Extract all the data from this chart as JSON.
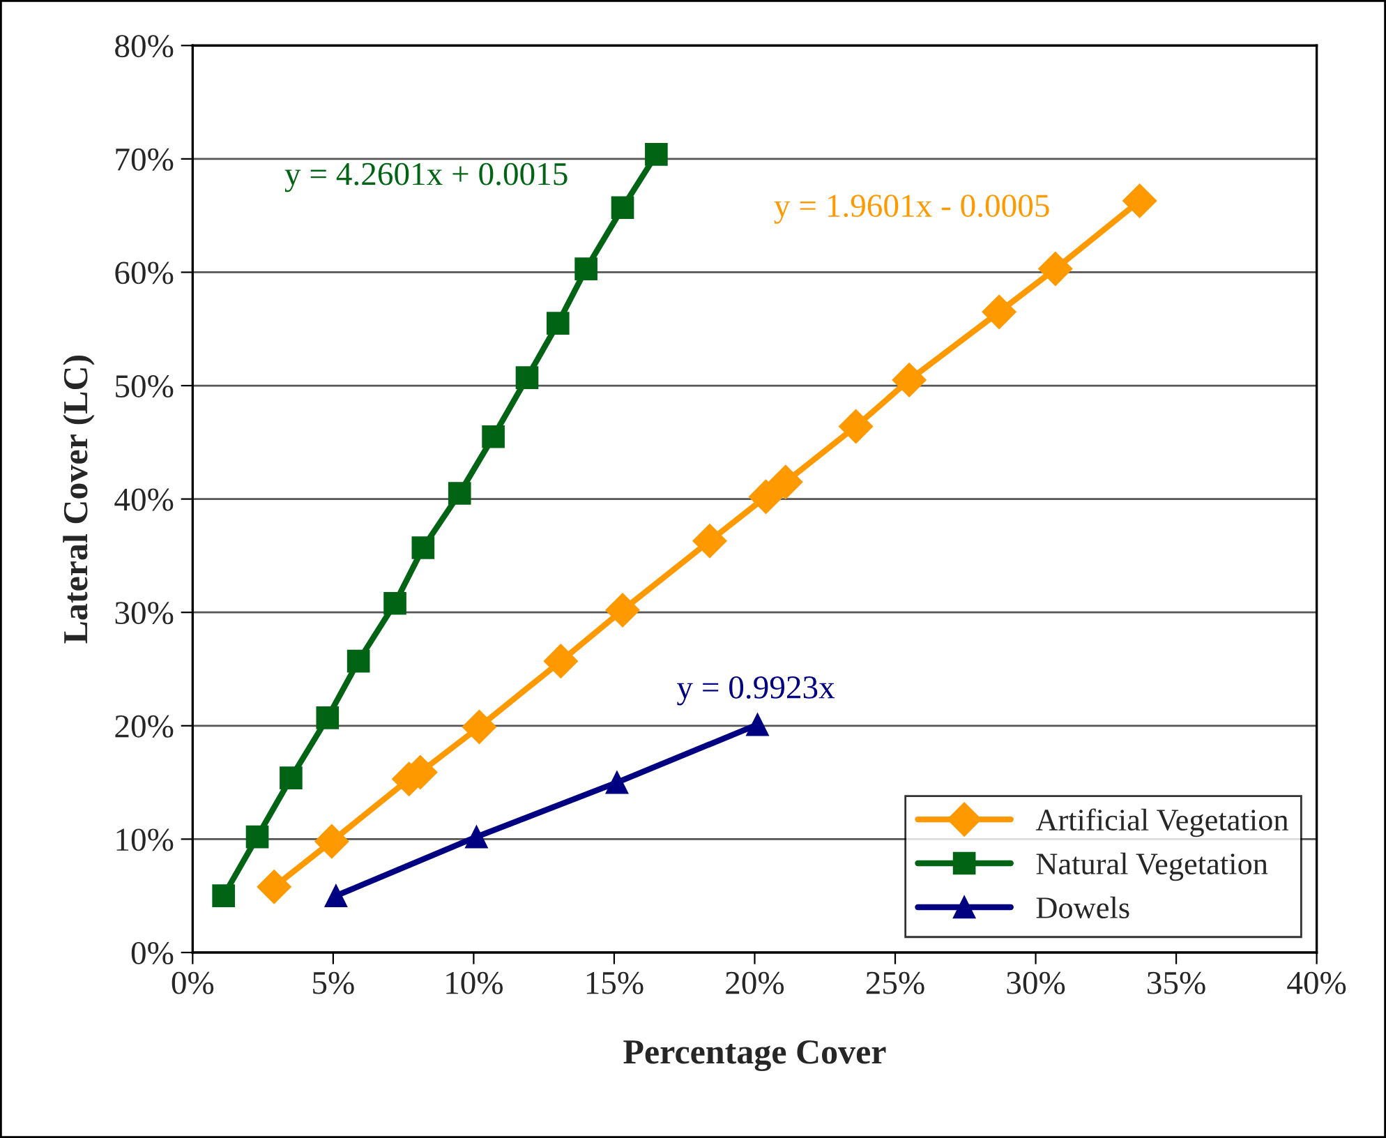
{
  "chart_data": {
    "type": "line",
    "xlabel": "Percentage Cover",
    "ylabel": "Lateral Cover (LC)",
    "xlim": [
      0,
      40
    ],
    "ylim": [
      0,
      80
    ],
    "xticks": [
      {
        "value": 0,
        "label": "0%"
      },
      {
        "value": 5,
        "label": "5%"
      },
      {
        "value": 10,
        "label": "10%"
      },
      {
        "value": 15,
        "label": "15%"
      },
      {
        "value": 20,
        "label": "20%"
      },
      {
        "value": 25,
        "label": "25%"
      },
      {
        "value": 30,
        "label": "30%"
      },
      {
        "value": 35,
        "label": "35%"
      },
      {
        "value": 40,
        "label": "40%"
      }
    ],
    "yticks": [
      {
        "value": 0,
        "label": "0%"
      },
      {
        "value": 10,
        "label": "10%"
      },
      {
        "value": 20,
        "label": "20%"
      },
      {
        "value": 30,
        "label": "30%"
      },
      {
        "value": 40,
        "label": "40%"
      },
      {
        "value": 50,
        "label": "50%"
      },
      {
        "value": 60,
        "label": "60%"
      },
      {
        "value": 70,
        "label": "70%"
      },
      {
        "value": 80,
        "label": "80%"
      }
    ],
    "grid": "y",
    "legend": "bottom right",
    "series": [
      {
        "name": "Artificial Vegetation",
        "color": "#ff9900",
        "marker": "diamond",
        "x": [
          2.9,
          4.95,
          7.7,
          8.1,
          10.2,
          13.1,
          15.3,
          18.4,
          20.4,
          21.1,
          23.6,
          25.5,
          28.7,
          30.7,
          33.7
        ],
        "values": [
          5.8,
          9.8,
          15.3,
          15.9,
          19.9,
          25.7,
          30.2,
          36.3,
          40.2,
          41.5,
          46.4,
          50.5,
          56.5,
          60.3,
          66.3
        ]
      },
      {
        "name": "Natural Vegetation",
        "color": "#006414",
        "marker": "square",
        "x": [
          1.1,
          2.3,
          3.5,
          4.8,
          5.9,
          7.2,
          8.2,
          9.5,
          10.7,
          11.9,
          13.0,
          14.0,
          15.3,
          16.5
        ],
        "values": [
          5.0,
          10.2,
          15.4,
          20.7,
          25.7,
          30.8,
          35.7,
          40.5,
          45.5,
          50.7,
          55.5,
          60.3,
          65.7,
          70.4
        ]
      },
      {
        "name": "Dowels",
        "color": "#000080",
        "marker": "triangle",
        "x": [
          5.1,
          10.1,
          15.1,
          20.1
        ],
        "values": [
          5.0,
          10.2,
          15.0,
          20.1
        ]
      }
    ],
    "annotations": [
      "y = 1.9601x - 0.0005",
      "y = 4.2601x + 0.0015",
      "y = 0.9923x"
    ]
  }
}
